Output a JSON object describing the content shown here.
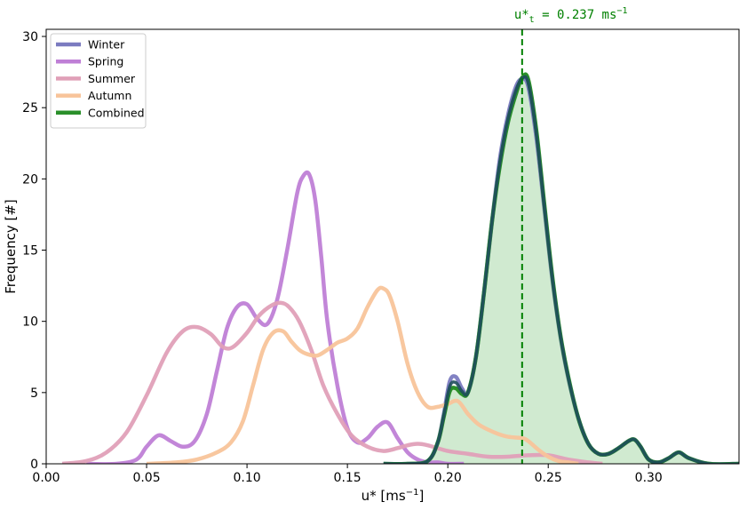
{
  "chart_data": {
    "type": "line",
    "xlabel": "u* [ms",
    "xlabel_sup": "−1",
    "xlabel_end": "]",
    "ylabel": "Frequency [#]",
    "xlim": [
      0.0,
      0.345
    ],
    "ylim": [
      0,
      30.5
    ],
    "xticks": [
      0.0,
      0.05,
      0.1,
      0.15,
      0.2,
      0.25,
      0.3
    ],
    "xtick_labels": [
      "0.00",
      "0.05",
      "0.10",
      "0.15",
      "0.20",
      "0.25",
      "0.30"
    ],
    "yticks": [
      0,
      5,
      10,
      15,
      20,
      25,
      30
    ],
    "ytick_labels": [
      "0",
      "5",
      "10",
      "15",
      "20",
      "25",
      "30"
    ],
    "legend_position": "top-left",
    "threshold": {
      "x": 0.237,
      "label_main": "u*",
      "label_sub": "t",
      "label_rest": " = 0.237 ms",
      "label_sup": "−1",
      "color": "#008000"
    },
    "series": [
      {
        "name": "Winter",
        "color": "#7b7bc0",
        "x": [
          0.168,
          0.18,
          0.19,
          0.195,
          0.198,
          0.201,
          0.204,
          0.207,
          0.21,
          0.214,
          0.218,
          0.222,
          0.226,
          0.23,
          0.234,
          0.237,
          0.24,
          0.244,
          0.248,
          0.252,
          0.256,
          0.26,
          0.265,
          0.27,
          0.275,
          0.28,
          0.285,
          0.29,
          0.293,
          0.296,
          0.3,
          0.305,
          0.31,
          0.315,
          0.32,
          0.33,
          0.345
        ],
        "y": [
          0,
          0,
          0.2,
          1.5,
          3.5,
          5.8,
          6.1,
          5.3,
          5.0,
          7.5,
          12,
          17,
          21.5,
          24.5,
          26.5,
          27,
          26.5,
          23,
          18,
          13,
          9,
          6,
          3.2,
          1.4,
          0.7,
          0.7,
          1.1,
          1.6,
          1.7,
          1.2,
          0.3,
          0.1,
          0.4,
          0.8,
          0.4,
          0,
          0
        ]
      },
      {
        "name": "Spring",
        "color": "#bf7fd6",
        "x": [
          0.02,
          0.035,
          0.045,
          0.05,
          0.056,
          0.062,
          0.068,
          0.074,
          0.08,
          0.085,
          0.09,
          0.095,
          0.1,
          0.105,
          0.11,
          0.115,
          0.12,
          0.125,
          0.128,
          0.131,
          0.134,
          0.137,
          0.14,
          0.145,
          0.15,
          0.155,
          0.16,
          0.165,
          0.17,
          0.175,
          0.18,
          0.185,
          0.19,
          0.195,
          0.2,
          0.208
        ],
        "y": [
          0,
          0,
          0.3,
          1.2,
          2.0,
          1.6,
          1.2,
          1.6,
          3.5,
          6.5,
          9.5,
          11.0,
          11.2,
          10.2,
          9.8,
          11.5,
          15,
          19,
          20.2,
          20.3,
          18.5,
          14.5,
          10,
          5.5,
          2.5,
          1.5,
          1.8,
          2.6,
          2.9,
          1.8,
          0.8,
          0.3,
          0.1,
          0.1,
          0,
          0
        ]
      },
      {
        "name": "Summer",
        "color": "#e0a0b8",
        "x": [
          0.008,
          0.02,
          0.03,
          0.04,
          0.05,
          0.06,
          0.068,
          0.075,
          0.082,
          0.088,
          0.093,
          0.1,
          0.106,
          0.112,
          0.117,
          0.121,
          0.126,
          0.132,
          0.138,
          0.145,
          0.152,
          0.16,
          0.168,
          0.175,
          0.18,
          0.185,
          0.19,
          0.2,
          0.21,
          0.22,
          0.23,
          0.24,
          0.25,
          0.26,
          0.27,
          0.277
        ],
        "y": [
          0,
          0.2,
          0.8,
          2.2,
          4.8,
          7.8,
          9.3,
          9.6,
          9.1,
          8.2,
          8.2,
          9.2,
          10.4,
          11.1,
          11.3,
          11.0,
          10.0,
          8.0,
          5.5,
          3.5,
          2.0,
          1.2,
          0.9,
          1.1,
          1.3,
          1.4,
          1.3,
          0.9,
          0.7,
          0.5,
          0.5,
          0.6,
          0.6,
          0.3,
          0.1,
          0
        ]
      },
      {
        "name": "Autumn",
        "color": "#f8c49a",
        "x": [
          0.05,
          0.065,
          0.075,
          0.085,
          0.092,
          0.098,
          0.103,
          0.108,
          0.113,
          0.118,
          0.122,
          0.126,
          0.13,
          0.135,
          0.14,
          0.145,
          0.15,
          0.155,
          0.16,
          0.165,
          0.168,
          0.171,
          0.175,
          0.18,
          0.185,
          0.19,
          0.195,
          0.2,
          0.205,
          0.21,
          0.215,
          0.22,
          0.225,
          0.23,
          0.237,
          0.24,
          0.245,
          0.25,
          0.255,
          0.26,
          0.265
        ],
        "y": [
          0,
          0.1,
          0.3,
          0.8,
          1.5,
          3.0,
          5.5,
          8.0,
          9.2,
          9.3,
          8.6,
          8.0,
          7.7,
          7.6,
          8.0,
          8.5,
          8.8,
          9.5,
          11.0,
          12.2,
          12.3,
          11.8,
          10.0,
          7.0,
          5.0,
          4.0,
          4.0,
          4.2,
          4.4,
          3.5,
          2.8,
          2.4,
          2.1,
          1.9,
          1.8,
          1.6,
          1.0,
          0.5,
          0.2,
          0.1,
          0
        ]
      },
      {
        "name": "Combined",
        "color": "#2a8f2a",
        "x": [
          0.168,
          0.18,
          0.19,
          0.195,
          0.198,
          0.201,
          0.204,
          0.207,
          0.21,
          0.214,
          0.218,
          0.222,
          0.226,
          0.23,
          0.234,
          0.237,
          0.24,
          0.244,
          0.248,
          0.252,
          0.256,
          0.26,
          0.265,
          0.27,
          0.275,
          0.28,
          0.285,
          0.29,
          0.293,
          0.296,
          0.3,
          0.305,
          0.31,
          0.315,
          0.32,
          0.33,
          0.345
        ],
        "y": [
          0,
          0,
          0.2,
          1.5,
          3.3,
          5.1,
          5.3,
          4.9,
          5.0,
          7.5,
          12,
          17,
          21.0,
          24.0,
          26.0,
          27.1,
          27.0,
          23.5,
          18.3,
          13.2,
          9.1,
          6.1,
          3.2,
          1.4,
          0.7,
          0.7,
          1.1,
          1.6,
          1.7,
          1.2,
          0.3,
          0.1,
          0.4,
          0.8,
          0.4,
          0,
          0
        ]
      }
    ]
  }
}
